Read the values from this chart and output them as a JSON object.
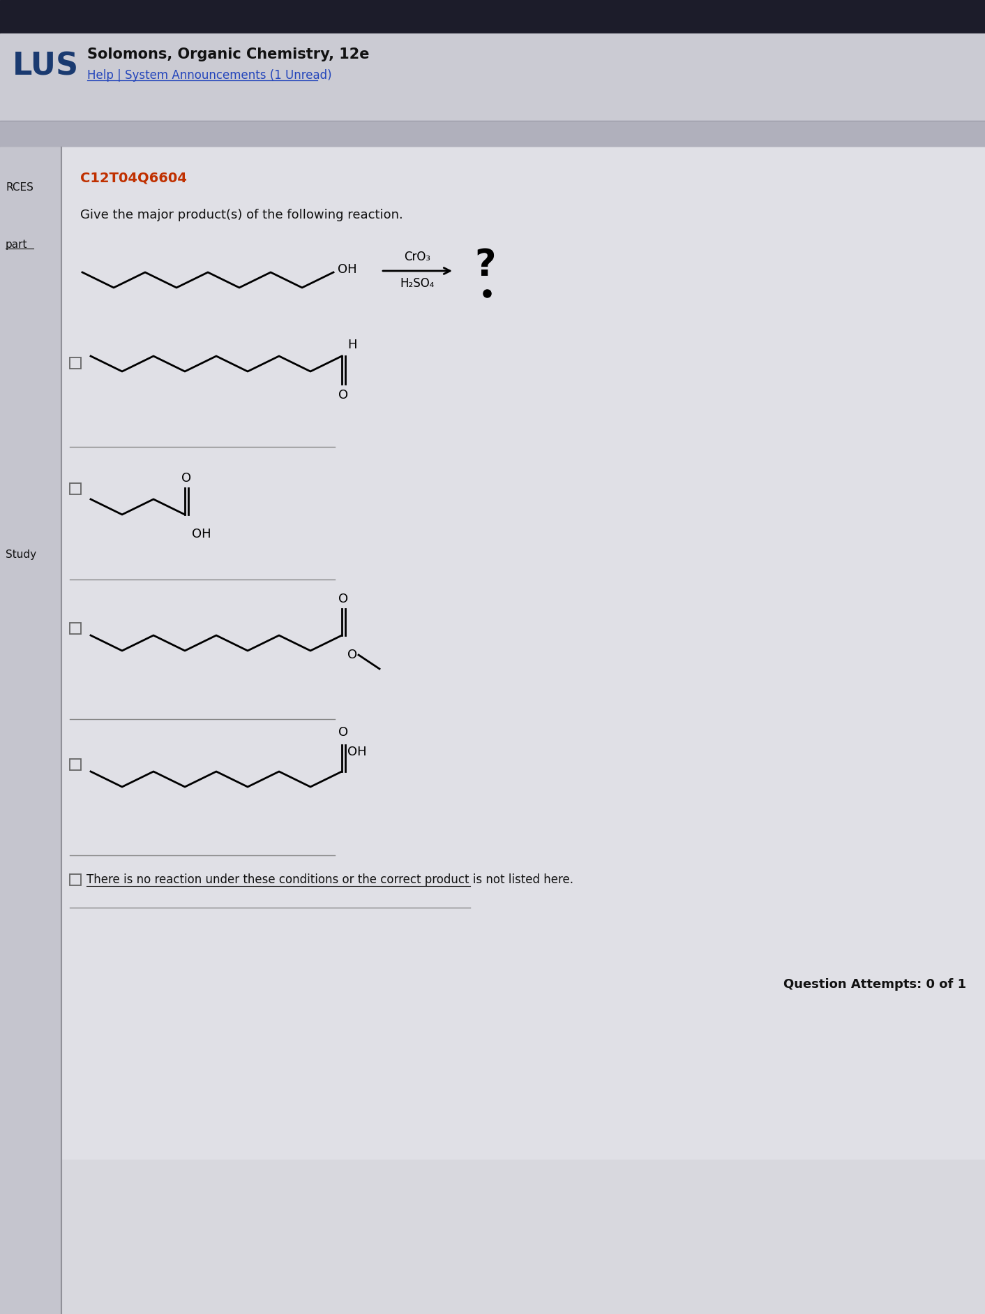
{
  "header_title": "Solomons, Organic Chemistry, 12e",
  "header_sub": "Help | System Announcements (1 Unread)",
  "question_id": "C12T04Q6604",
  "question_text": "Give the major product(s) of the following reaction.",
  "no_reaction_text": "There is no reaction under these conditions or the correct product is not listed here.",
  "attempts_text": "Question Attempts: 0 of 1",
  "reagent1": "CrO₃",
  "reagent2": "H₂SO₄",
  "bg_topbar": "#1c1c2a",
  "bg_header": "#cbcbd3",
  "bg_nav_divider": "#b0b0bc",
  "bg_main": "#d2d2da",
  "bg_sidebar": "#c5c5ce",
  "bg_content": "#e0e0e6",
  "bg_content2": "#d8d8de",
  "text_dark": "#1a1a1a",
  "text_red": "#c03000",
  "text_link": "#2244bb",
  "text_gray": "#444444"
}
